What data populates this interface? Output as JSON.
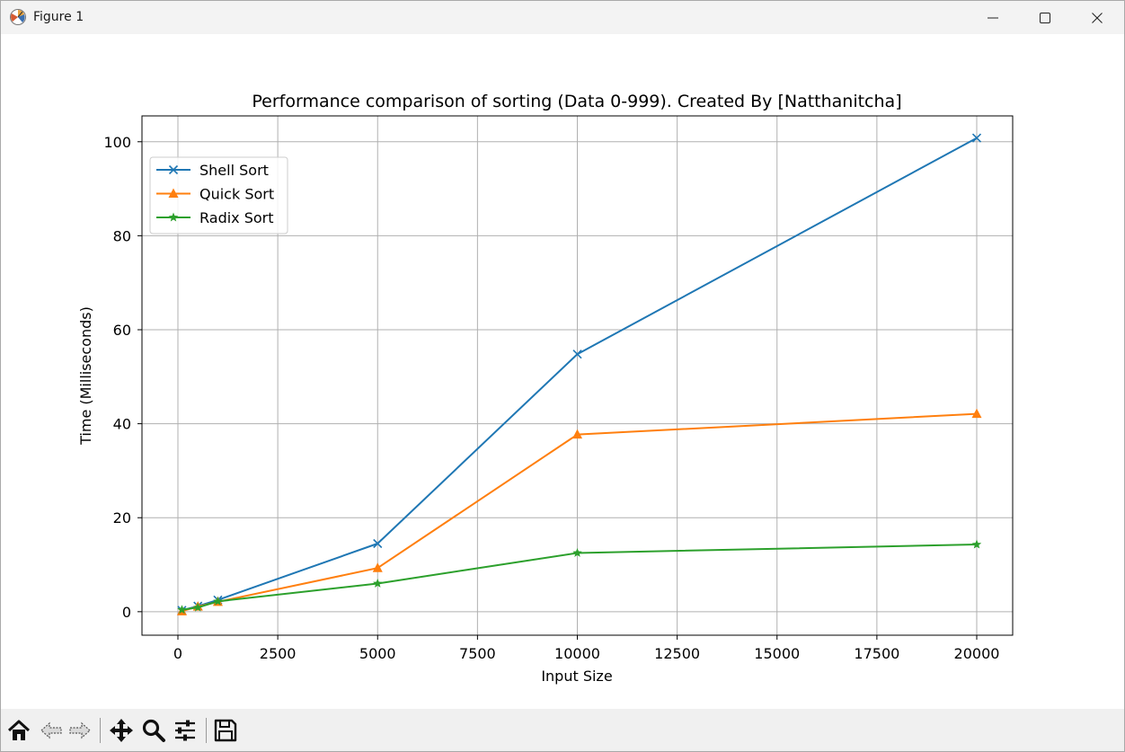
{
  "window": {
    "title": "Figure 1"
  },
  "titlebar_icons": [
    "app-icon",
    "minimize-icon",
    "maximize-icon",
    "close-icon"
  ],
  "toolbar": {
    "icons": [
      "home-icon",
      "back-arrow-icon",
      "forward-arrow-icon",
      "pan-move-icon",
      "zoom-magnifier-icon",
      "configure-subplots-icon",
      "save-floppy-icon"
    ]
  },
  "chart_data": {
    "type": "line",
    "title": "Performance comparison of sorting (Data 0-999). Created By [Natthanitcha]",
    "xlabel": "Input Size",
    "ylabel": "Time (Milliseconds)",
    "xlim": [
      -900,
      20900
    ],
    "ylim": [
      -5,
      105.5
    ],
    "xticks": [
      0,
      2500,
      5000,
      7500,
      10000,
      12500,
      15000,
      17500,
      20000
    ],
    "yticks": [
      0,
      20,
      40,
      60,
      80,
      100
    ],
    "grid": true,
    "legend_position": "top-left",
    "x": [
      100,
      500,
      1000,
      5000,
      10000,
      20000
    ],
    "series": [
      {
        "name": "Shell Sort",
        "marker": "x",
        "color": "#1f77b4",
        "values": [
          0.3,
          1.2,
          2.5,
          14.5,
          54.8,
          100.8
        ]
      },
      {
        "name": "Quick Sort",
        "marker": "triangle",
        "color": "#ff7f0e",
        "values": [
          0.1,
          1.1,
          2.1,
          9.3,
          37.7,
          42.1
        ]
      },
      {
        "name": "Radix Sort",
        "marker": "star",
        "color": "#2ca02c",
        "values": [
          0.4,
          0.9,
          2.2,
          6.0,
          12.5,
          14.3
        ]
      }
    ]
  }
}
